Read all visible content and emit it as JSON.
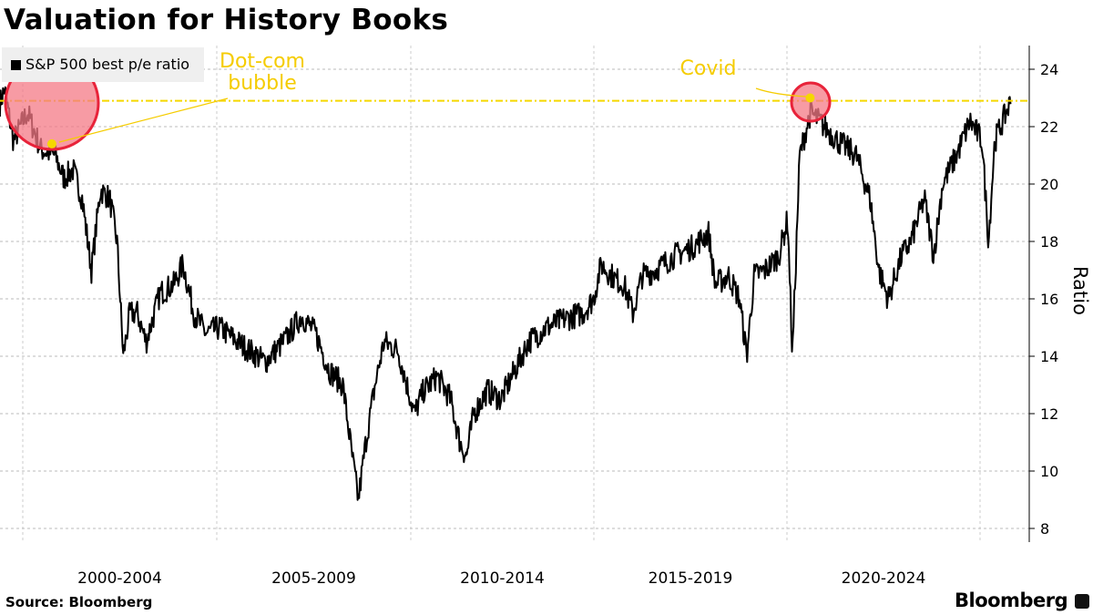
{
  "title": "Valuation for History Books",
  "source": "Source: Bloomberg",
  "brand": "Bloomberg",
  "colors": {
    "line": "#000000",
    "highlight": "#f5d800",
    "circle_fill": "#f47a85",
    "circle_stroke": "#e8233a"
  },
  "chart_data": {
    "type": "line",
    "title": "Valuation for History Books",
    "ylabel": "Ratio",
    "ylim": [
      7.5,
      25
    ],
    "yticks": [
      8,
      10,
      12,
      14,
      16,
      18,
      20,
      22,
      24
    ],
    "xlim": [
      1999.4,
      2026.1
    ],
    "x_period_labels": [
      "2000-2004",
      "2005-2009",
      "2010-2014",
      "2015-2019",
      "2020-2024"
    ],
    "grid": true,
    "legend": {
      "placement": "top-left",
      "entries": [
        "S&P 500 best p/e ratio"
      ]
    },
    "reference_line": {
      "value": 22.9
    },
    "annotations": [
      {
        "text": "Dot-com bubble",
        "year": 2000.75,
        "value": 21.4
      },
      {
        "text": "Covid",
        "year": 2020.6,
        "value": 23.0
      }
    ],
    "series": [
      {
        "name": "S&P 500 best p/e ratio",
        "x": [
          1999.41,
          1999.53,
          1999.76,
          2000.12,
          2000.47,
          2000.83,
          2001.06,
          2001.3,
          2001.53,
          2001.77,
          2002.0,
          2002.24,
          2002.43,
          2002.59,
          2002.76,
          2002.95,
          2003.18,
          2003.54,
          2003.89,
          2004.13,
          2004.41,
          2004.72,
          2005.07,
          2005.54,
          2006.25,
          2006.72,
          2007.19,
          2007.55,
          2007.9,
          2008.25,
          2008.49,
          2008.65,
          2008.84,
          2009.08,
          2009.31,
          2009.67,
          2009.9,
          2010.1,
          2010.35,
          2010.72,
          2011.09,
          2011.34,
          2011.52,
          2011.72,
          2012.09,
          2012.46,
          2012.84,
          2013.21,
          2013.71,
          2014.2,
          2014.7,
          2014.99,
          2015.19,
          2015.54,
          2015.78,
          2016.01,
          2016.25,
          2016.6,
          2017.08,
          2017.55,
          2017.97,
          2018.14,
          2018.49,
          2018.77,
          2018.96,
          2019.15,
          2019.43,
          2019.79,
          2020.02,
          2020.14,
          2020.33,
          2020.61,
          2020.97,
          2021.32,
          2021.79,
          2022.15,
          2022.38,
          2022.62,
          2022.97,
          2023.21,
          2023.56,
          2023.8,
          2024.03,
          2024.39,
          2024.74,
          2025.05,
          2025.22,
          2025.38,
          2025.8
        ],
        "values": [
          22.8,
          23.3,
          21.5,
          22.5,
          21.2,
          21.0,
          20.2,
          20.5,
          19.5,
          17.0,
          19.8,
          19.5,
          18.0,
          14.0,
          15.5,
          15.5,
          14.5,
          16.2,
          16.5,
          17.2,
          15.5,
          14.8,
          15.0,
          14.5,
          13.8,
          14.5,
          15.4,
          14.8,
          13.5,
          13.0,
          10.5,
          9.0,
          11.0,
          13.0,
          14.5,
          14.2,
          13.0,
          12.0,
          12.8,
          13.3,
          12.5,
          11.0,
          10.5,
          12.0,
          12.8,
          12.5,
          13.5,
          14.5,
          15.0,
          15.3,
          15.5,
          16.0,
          17.2,
          16.7,
          16.5,
          15.5,
          16.8,
          17.0,
          17.5,
          17.8,
          18.3,
          16.5,
          16.8,
          16.0,
          14.0,
          16.8,
          17.0,
          17.5,
          18.8,
          14.0,
          21.0,
          22.5,
          22.0,
          21.5,
          21.0,
          19.5,
          17.0,
          16.0,
          17.5,
          18.0,
          19.5,
          17.5,
          20.0,
          21.0,
          22.2,
          21.5,
          18.0,
          21.5,
          22.9
        ]
      }
    ]
  }
}
